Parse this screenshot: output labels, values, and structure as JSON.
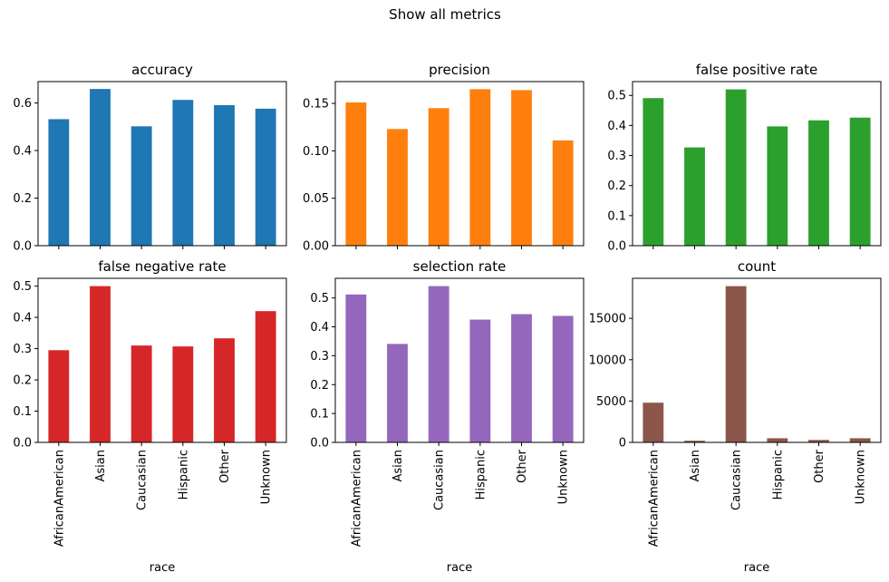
{
  "suptitle": "Show all metrics",
  "chart_data": [
    {
      "type": "bar",
      "title": "accuracy",
      "xlabel": "",
      "categories": [
        "AfricanAmerican",
        "Asian",
        "Caucasian",
        "Hispanic",
        "Other",
        "Unknown"
      ],
      "values": [
        0.532,
        0.659,
        0.502,
        0.613,
        0.591,
        0.576
      ],
      "color": "#1f77b4",
      "ylim": [
        0,
        0.69
      ],
      "yticks": [
        0.0,
        0.2,
        0.4,
        0.6
      ],
      "ytick_labels": [
        "0.0",
        "0.2",
        "0.4",
        "0.6"
      ],
      "show_xtick_labels": false,
      "grid": false
    },
    {
      "type": "bar",
      "title": "precision",
      "xlabel": "",
      "categories": [
        "AfricanAmerican",
        "Asian",
        "Caucasian",
        "Hispanic",
        "Other",
        "Unknown"
      ],
      "values": [
        0.151,
        0.123,
        0.145,
        0.165,
        0.164,
        0.111
      ],
      "color": "#ff7f0e",
      "ylim": [
        0,
        0.173
      ],
      "yticks": [
        0.0,
        0.05,
        0.1,
        0.15
      ],
      "ytick_labels": [
        "0.00",
        "0.05",
        "0.10",
        "0.15"
      ],
      "show_xtick_labels": false,
      "grid": false
    },
    {
      "type": "bar",
      "title": "false positive rate",
      "xlabel": "",
      "categories": [
        "AfricanAmerican",
        "Asian",
        "Caucasian",
        "Hispanic",
        "Other",
        "Unknown"
      ],
      "values": [
        0.491,
        0.327,
        0.52,
        0.397,
        0.417,
        0.426
      ],
      "color": "#2ca02c",
      "ylim": [
        0,
        0.546
      ],
      "yticks": [
        0.0,
        0.1,
        0.2,
        0.3,
        0.4,
        0.5
      ],
      "ytick_labels": [
        "0.0",
        "0.1",
        "0.2",
        "0.3",
        "0.4",
        "0.5"
      ],
      "show_xtick_labels": false,
      "grid": false
    },
    {
      "type": "bar",
      "title": "false negative rate",
      "xlabel": "race",
      "categories": [
        "AfricanAmerican",
        "Asian",
        "Caucasian",
        "Hispanic",
        "Other",
        "Unknown"
      ],
      "values": [
        0.295,
        0.5,
        0.31,
        0.307,
        0.333,
        0.42
      ],
      "color": "#d62728",
      "ylim": [
        0,
        0.525
      ],
      "yticks": [
        0.0,
        0.1,
        0.2,
        0.3,
        0.4,
        0.5
      ],
      "ytick_labels": [
        "0.0",
        "0.1",
        "0.2",
        "0.3",
        "0.4",
        "0.5"
      ],
      "show_xtick_labels": true,
      "grid": false
    },
    {
      "type": "bar",
      "title": "selection rate",
      "xlabel": "race",
      "categories": [
        "AfricanAmerican",
        "Asian",
        "Caucasian",
        "Hispanic",
        "Other",
        "Unknown"
      ],
      "values": [
        0.512,
        0.341,
        0.541,
        0.425,
        0.444,
        0.438
      ],
      "color": "#9467bd",
      "ylim": [
        0,
        0.568
      ],
      "yticks": [
        0.0,
        0.1,
        0.2,
        0.3,
        0.4,
        0.5
      ],
      "ytick_labels": [
        "0.0",
        "0.1",
        "0.2",
        "0.3",
        "0.4",
        "0.5"
      ],
      "show_xtick_labels": true,
      "grid": false
    },
    {
      "type": "bar",
      "title": "count",
      "xlabel": "race",
      "categories": [
        "AfricanAmerican",
        "Asian",
        "Caucasian",
        "Hispanic",
        "Other",
        "Unknown"
      ],
      "values": [
        4800,
        200,
        18900,
        500,
        300,
        500
      ],
      "color": "#8c564b",
      "ylim": [
        0,
        19845
      ],
      "yticks": [
        0,
        5000,
        10000,
        15000
      ],
      "ytick_labels": [
        "0",
        "5000",
        "10000",
        "15000"
      ],
      "show_xtick_labels": true,
      "grid": false
    }
  ]
}
